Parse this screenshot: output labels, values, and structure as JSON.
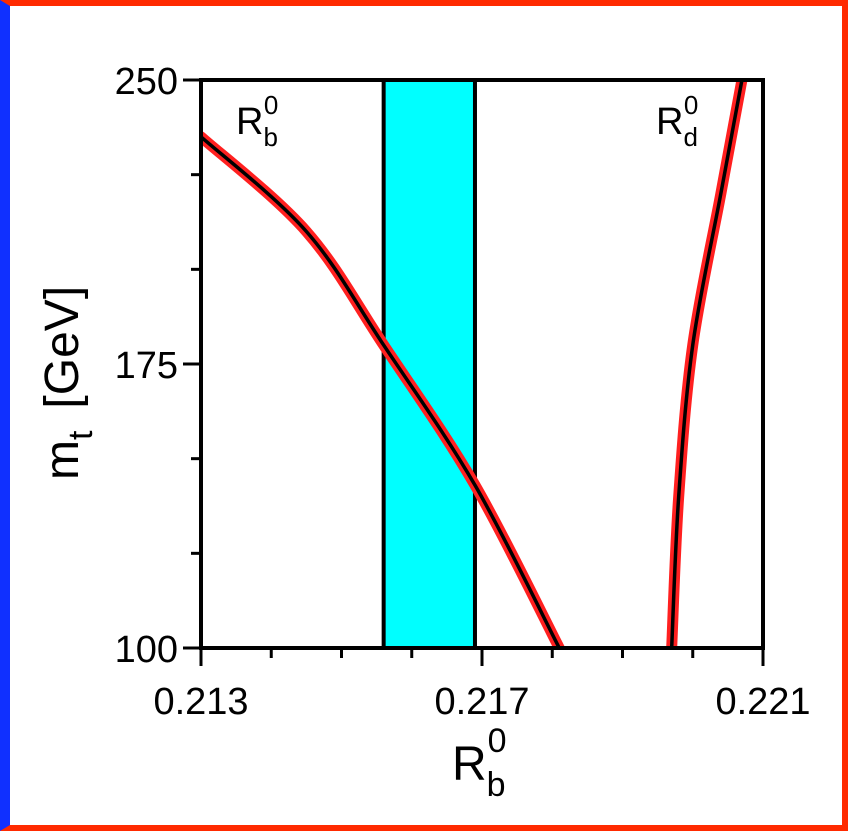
{
  "chart_data": {
    "type": "line",
    "xlabel": "R",
    "xlabel_sub": "b",
    "xlabel_sup": "0",
    "ylabel_main": "m",
    "ylabel_sub": "t",
    "ylabel_unit": "[GeV]",
    "xlim": [
      0.213,
      0.221
    ],
    "ylim": [
      100,
      250
    ],
    "x_ticks": [
      0.213,
      0.217,
      0.221
    ],
    "x_tick_labels": [
      "0.213",
      "0.217",
      "0.221"
    ],
    "y_ticks": [
      100,
      175,
      250
    ],
    "y_tick_labels": [
      "100",
      "175",
      "250"
    ],
    "band": {
      "x_from": 0.2156,
      "x_to": 0.2169,
      "color": "#00ffff"
    },
    "series": [
      {
        "label_main": "R",
        "label_sub": "b",
        "label_sup": "0",
        "color": "#000000",
        "band_color": "#ff2020",
        "points": [
          [
            0.213,
            235
          ],
          [
            0.2145,
            210
          ],
          [
            0.2156,
            180
          ],
          [
            0.2169,
            143
          ],
          [
            0.2181,
            100
          ]
        ]
      },
      {
        "label_main": "R",
        "label_sub": "d",
        "label_sup": "0",
        "color": "#000000",
        "band_color": "#ff2020",
        "points": [
          [
            0.2197,
            100
          ],
          [
            0.2198,
            140
          ],
          [
            0.22,
            180
          ],
          [
            0.2204,
            220
          ],
          [
            0.2207,
            250
          ]
        ]
      }
    ]
  }
}
